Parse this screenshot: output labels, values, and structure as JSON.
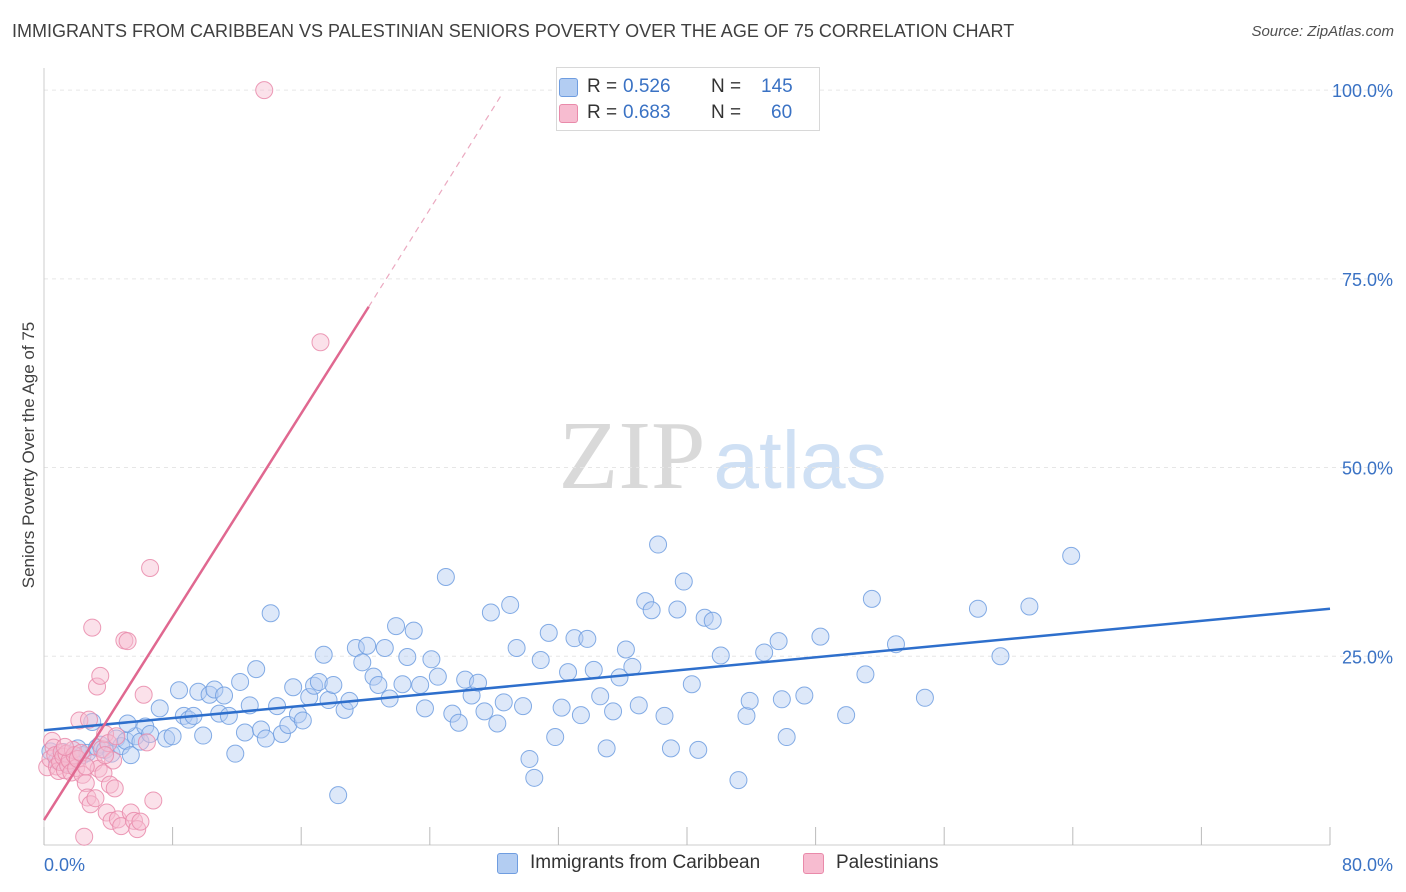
{
  "header": {
    "title": "IMMIGRANTS FROM CARIBBEAN VS PALESTINIAN SENIORS POVERTY OVER THE AGE OF 75 CORRELATION CHART",
    "source": "Source: ZipAtlas.com"
  },
  "watermark": {
    "zip": "ZIP",
    "atlas": "atlas"
  },
  "legend": {
    "r_label": "R =",
    "n_label": "N =",
    "rows": [
      {
        "r": "0.526",
        "n": "145"
      },
      {
        "r": "0.683",
        "n": "60"
      }
    ]
  },
  "colors": {
    "blue_fill": "#b3cdf2",
    "blue_stroke": "#6f9de0",
    "blue_line": "#2e6fcc",
    "pink_fill": "#f7bcd0",
    "pink_stroke": "#e98aaa",
    "pink_line": "#e06890",
    "axis_label": "#3a72c4",
    "grid": "#e6e6e6"
  },
  "chart_data": {
    "type": "scatter",
    "title": "IMMIGRANTS FROM CARIBBEAN VS PALESTINIAN SENIORS POVERTY OVER THE AGE OF 75 CORRELATION CHART",
    "xlabel": "",
    "ylabel": "Seniors Poverty Over the Age of 75",
    "xlim": [
      0,
      80
    ],
    "ylim": [
      0,
      102
    ],
    "x_tick_labels": [
      "0.0%",
      "80.0%"
    ],
    "y_ticks": [
      25,
      50,
      75,
      100
    ],
    "y_tick_labels": [
      "25.0%",
      "50.0%",
      "75.0%",
      "100.0%"
    ],
    "grid": true,
    "legend_position": "top-center",
    "series": [
      {
        "name": "Immigrants from Caribbean",
        "color": "#6f9de0",
        "R": 0.526,
        "N": 145,
        "trend": {
          "x": [
            0,
            80
          ],
          "y": [
            15.2,
            31.3
          ]
        },
        "points": [
          [
            0.4,
            12.4
          ],
          [
            0.8,
            11.2
          ],
          [
            1.2,
            12.3
          ],
          [
            1.5,
            10.8
          ],
          [
            1.8,
            11.6
          ],
          [
            2.1,
            12.8
          ],
          [
            2.4,
            11.9
          ],
          [
            2.7,
            12.2
          ],
          [
            3.0,
            16.3
          ],
          [
            3.3,
            12.9
          ],
          [
            3.5,
            13.3
          ],
          [
            3.8,
            12.6
          ],
          [
            4.2,
            12.1
          ],
          [
            4.5,
            14.1
          ],
          [
            4.8,
            13.1
          ],
          [
            5.1,
            13.8
          ],
          [
            5.4,
            11.9
          ],
          [
            5.7,
            14.4
          ],
          [
            6.0,
            13.7
          ],
          [
            6.3,
            15.7
          ],
          [
            6.6,
            14.7
          ],
          [
            7.2,
            18.1
          ],
          [
            7.6,
            14.1
          ],
          [
            8.0,
            14.4
          ],
          [
            8.4,
            20.5
          ],
          [
            8.7,
            17.1
          ],
          [
            9.0,
            16.6
          ],
          [
            9.3,
            17.1
          ],
          [
            9.6,
            20.3
          ],
          [
            9.9,
            14.5
          ],
          [
            10.3,
            19.9
          ],
          [
            10.6,
            20.6
          ],
          [
            10.9,
            17.4
          ],
          [
            11.2,
            19.8
          ],
          [
            11.5,
            17.1
          ],
          [
            11.9,
            12.1
          ],
          [
            12.2,
            21.6
          ],
          [
            12.5,
            14.9
          ],
          [
            12.8,
            18.5
          ],
          [
            13.2,
            23.3
          ],
          [
            13.5,
            15.3
          ],
          [
            13.8,
            14.1
          ],
          [
            14.1,
            30.7
          ],
          [
            14.5,
            18.4
          ],
          [
            14.8,
            14.7
          ],
          [
            15.2,
            15.9
          ],
          [
            15.5,
            20.9
          ],
          [
            15.8,
            17.3
          ],
          [
            16.1,
            16.5
          ],
          [
            16.5,
            19.6
          ],
          [
            16.8,
            21.1
          ],
          [
            17.1,
            21.6
          ],
          [
            17.4,
            25.2
          ],
          [
            17.7,
            19.2
          ],
          [
            18.0,
            21.2
          ],
          [
            18.3,
            6.6
          ],
          [
            18.7,
            17.9
          ],
          [
            19.0,
            19.1
          ],
          [
            19.4,
            26.1
          ],
          [
            19.8,
            24.2
          ],
          [
            20.1,
            26.4
          ],
          [
            20.5,
            22.3
          ],
          [
            20.8,
            21.2
          ],
          [
            21.2,
            26.1
          ],
          [
            21.5,
            19.4
          ],
          [
            21.9,
            29.0
          ],
          [
            22.3,
            21.3
          ],
          [
            22.6,
            24.9
          ],
          [
            23.0,
            28.4
          ],
          [
            23.4,
            21.2
          ],
          [
            23.7,
            18.1
          ],
          [
            24.1,
            24.6
          ],
          [
            24.5,
            22.3
          ],
          [
            25.0,
            35.5
          ],
          [
            25.4,
            17.4
          ],
          [
            25.8,
            16.2
          ],
          [
            26.2,
            21.9
          ],
          [
            26.6,
            19.8
          ],
          [
            27.0,
            21.5
          ],
          [
            27.4,
            17.7
          ],
          [
            27.8,
            30.8
          ],
          [
            28.2,
            16.1
          ],
          [
            28.6,
            18.9
          ],
          [
            29.0,
            31.8
          ],
          [
            29.4,
            26.1
          ],
          [
            29.8,
            18.4
          ],
          [
            30.2,
            11.4
          ],
          [
            30.5,
            8.9
          ],
          [
            30.9,
            24.5
          ],
          [
            31.4,
            28.1
          ],
          [
            31.8,
            14.3
          ],
          [
            32.2,
            18.2
          ],
          [
            32.6,
            22.9
          ],
          [
            33.0,
            27.4
          ],
          [
            33.4,
            17.2
          ],
          [
            33.8,
            27.3
          ],
          [
            34.2,
            23.2
          ],
          [
            34.6,
            19.7
          ],
          [
            35.0,
            12.8
          ],
          [
            35.4,
            17.7
          ],
          [
            35.8,
            22.2
          ],
          [
            36.2,
            25.9
          ],
          [
            36.6,
            23.6
          ],
          [
            37.0,
            18.5
          ],
          [
            37.4,
            32.3
          ],
          [
            37.8,
            31.1
          ],
          [
            38.2,
            39.8
          ],
          [
            38.6,
            17.1
          ],
          [
            39.0,
            12.8
          ],
          [
            39.4,
            31.2
          ],
          [
            39.8,
            34.9
          ],
          [
            40.3,
            21.3
          ],
          [
            40.7,
            12.6
          ],
          [
            41.1,
            30.1
          ],
          [
            41.6,
            29.7
          ],
          [
            42.1,
            25.1
          ],
          [
            43.2,
            8.6
          ],
          [
            43.7,
            17.1
          ],
          [
            43.9,
            19.1
          ],
          [
            44.8,
            25.5
          ],
          [
            45.7,
            27.0
          ],
          [
            45.9,
            19.3
          ],
          [
            46.2,
            14.3
          ],
          [
            47.3,
            19.8
          ],
          [
            48.3,
            27.6
          ],
          [
            49.9,
            17.2
          ],
          [
            51.1,
            22.6
          ],
          [
            51.5,
            32.6
          ],
          [
            53.0,
            26.6
          ],
          [
            54.8,
            19.5
          ],
          [
            58.1,
            31.3
          ],
          [
            59.5,
            25.0
          ],
          [
            61.3,
            31.6
          ],
          [
            63.9,
            38.3
          ],
          [
            5.2,
            16.1
          ]
        ]
      },
      {
        "name": "Palestinians",
        "color": "#e98aaa",
        "R": 0.683,
        "N": 60,
        "trend": {
          "x": [
            0,
            20.2
          ],
          "y": [
            3.3,
            71.3
          ]
        },
        "trend_extension": {
          "x": [
            20.2,
            28.5
          ],
          "y": [
            71.3,
            99.5
          ]
        },
        "points": [
          [
            0.2,
            10.3
          ],
          [
            0.4,
            11.4
          ],
          [
            0.5,
            13.8
          ],
          [
            0.6,
            12.9
          ],
          [
            0.7,
            11.9
          ],
          [
            0.8,
            10.4
          ],
          [
            0.9,
            9.8
          ],
          [
            1.0,
            11.0
          ],
          [
            1.1,
            12.3
          ],
          [
            1.2,
            11.7
          ],
          [
            1.3,
            9.9
          ],
          [
            1.4,
            12.1
          ],
          [
            1.5,
            10.6
          ],
          [
            1.6,
            11.2
          ],
          [
            1.7,
            9.6
          ],
          [
            1.8,
            12.6
          ],
          [
            1.9,
            11.9
          ],
          [
            2.0,
            10.2
          ],
          [
            2.1,
            11.4
          ],
          [
            2.2,
            16.5
          ],
          [
            2.3,
            12.2
          ],
          [
            2.4,
            9.3
          ],
          [
            2.5,
            1.1
          ],
          [
            2.6,
            8.2
          ],
          [
            2.7,
            6.3
          ],
          [
            2.8,
            16.6
          ],
          [
            2.9,
            5.4
          ],
          [
            3.0,
            28.8
          ],
          [
            3.1,
            10.9
          ],
          [
            3.2,
            6.2
          ],
          [
            3.3,
            21.0
          ],
          [
            3.4,
            10.1
          ],
          [
            3.5,
            22.4
          ],
          [
            3.6,
            12.7
          ],
          [
            3.7,
            9.5
          ],
          [
            3.8,
            14.7
          ],
          [
            3.9,
            4.3
          ],
          [
            4.0,
            13.5
          ],
          [
            4.1,
            8.0
          ],
          [
            4.2,
            3.2
          ],
          [
            4.3,
            11.2
          ],
          [
            4.4,
            7.5
          ],
          [
            4.5,
            14.4
          ],
          [
            4.6,
            3.4
          ],
          [
            4.8,
            2.5
          ],
          [
            5.0,
            27.1
          ],
          [
            5.2,
            27.0
          ],
          [
            5.4,
            4.3
          ],
          [
            5.6,
            3.2
          ],
          [
            5.8,
            2.1
          ],
          [
            6.0,
            3.1
          ],
          [
            6.2,
            19.9
          ],
          [
            6.4,
            13.6
          ],
          [
            6.6,
            36.7
          ],
          [
            6.8,
            5.9
          ],
          [
            13.7,
            100.0
          ],
          [
            17.2,
            66.6
          ],
          [
            1.3,
            13.0
          ],
          [
            2.6,
            10.4
          ],
          [
            3.8,
            11.9
          ]
        ]
      }
    ]
  }
}
